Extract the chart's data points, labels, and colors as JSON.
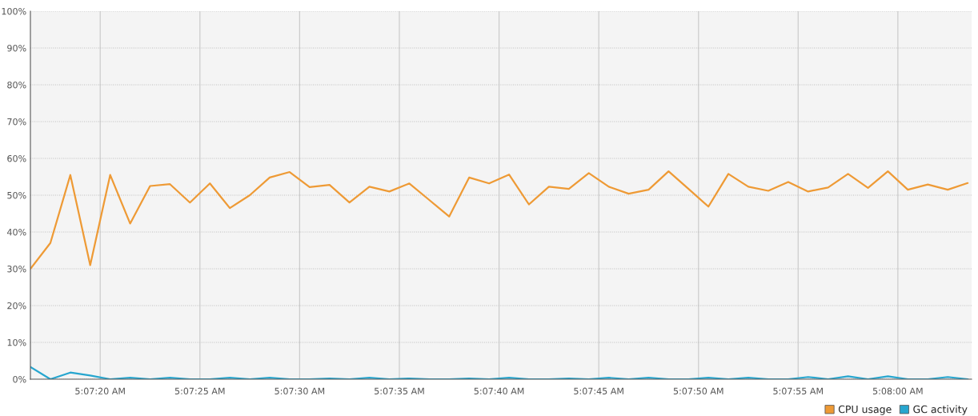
{
  "chart_data": {
    "type": "line",
    "x": [
      5.12125,
      5.121528,
      5.121806,
      5.122083,
      5.122361,
      5.122639,
      5.122917,
      5.123194,
      5.123472,
      5.12375,
      5.124028,
      5.124306,
      5.124583,
      5.124861,
      5.125139,
      5.125417,
      5.125694,
      5.125972,
      5.12625,
      5.126528,
      5.126806,
      5.127083,
      5.127361,
      5.127639,
      5.127917,
      5.128194,
      5.128472,
      5.12875,
      5.129028,
      5.129306,
      5.129583,
      5.129861,
      5.130139,
      5.130417,
      5.130694,
      5.130972,
      5.13125,
      5.131528,
      5.131806,
      5.132083,
      5.132361,
      5.132639,
      5.132917,
      5.133194,
      5.133472,
      5.13375,
      5.134028,
      5.134306
    ],
    "series": [
      {
        "name": "CPU usage",
        "color": "#ee9a35",
        "values": [
          30,
          37,
          55.5,
          31,
          55.5,
          42.3,
          52.5,
          53,
          48,
          53.2,
          46.5,
          50,
          54.8,
          56.3,
          52.2,
          52.8,
          48,
          52.3,
          51,
          53.2,
          48.7,
          44.2,
          54.8,
          53.2,
          55.6,
          47.5,
          52.3,
          51.7,
          56,
          52.3,
          50.4,
          51.5,
          56.5,
          51.7,
          46.9,
          55.8,
          52.3,
          51.2,
          53.6,
          51,
          52.1,
          55.8,
          52,
          56.5,
          51.5,
          52.9,
          51.5,
          53.3
        ]
      },
      {
        "name": "GC activity",
        "color": "#27a6cf",
        "values": [
          3.3,
          0,
          1.8,
          1,
          0,
          0.4,
          0,
          0.4,
          0,
          0,
          0.4,
          0,
          0.4,
          0,
          0,
          0.2,
          0,
          0.4,
          0,
          0.2,
          0,
          0,
          0.2,
          0,
          0.4,
          0,
          0,
          0.2,
          0,
          0.4,
          0,
          0.4,
          0,
          0,
          0.4,
          0,
          0.4,
          0,
          0,
          0.6,
          0,
          0.8,
          0,
          0.8,
          0,
          0,
          0.6,
          0
        ]
      }
    ],
    "xlim": [
      5.12125,
      5.13436
    ],
    "xticks": [
      {
        "value": 5.122222,
        "label": "5:07:20 AM"
      },
      {
        "value": 5.123611,
        "label": "5:07:25 AM"
      },
      {
        "value": 5.125,
        "label": "5:07:30 AM"
      },
      {
        "value": 5.126389,
        "label": "5:07:35 AM"
      },
      {
        "value": 5.127778,
        "label": "5:07:40 AM"
      },
      {
        "value": 5.129167,
        "label": "5:07:45 AM"
      },
      {
        "value": 5.130556,
        "label": "5:07:50 AM"
      },
      {
        "value": 5.131944,
        "label": "5:07:55 AM"
      },
      {
        "value": 5.133333,
        "label": "5:08:00 AM"
      }
    ],
    "ylim": [
      0,
      100
    ],
    "yticks": [
      {
        "value": 0,
        "label": "0%"
      },
      {
        "value": 10,
        "label": "10%"
      },
      {
        "value": 20,
        "label": "20%"
      },
      {
        "value": 30,
        "label": "30%"
      },
      {
        "value": 40,
        "label": "40%"
      },
      {
        "value": 50,
        "label": "50%"
      },
      {
        "value": 60,
        "label": "60%"
      },
      {
        "value": 70,
        "label": "70%"
      },
      {
        "value": 80,
        "label": "80%"
      },
      {
        "value": 90,
        "label": "90%"
      },
      {
        "value": 100,
        "label": "100%"
      }
    ],
    "grid": true,
    "legend": "bottom right",
    "marker": "none",
    "line_style": "solid"
  }
}
